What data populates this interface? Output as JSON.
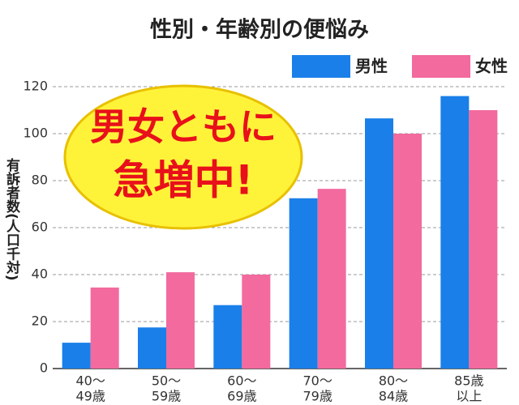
{
  "chart_data": {
    "type": "bar",
    "title": "性別・年齢別の便悩み",
    "y_label": "有訴者数(人口千対)",
    "annotation": [
      "男女ともに",
      "急増中!"
    ],
    "categories": [
      [
        "40～",
        "49歳"
      ],
      [
        "50～",
        "59歳"
      ],
      [
        "60～",
        "69歳"
      ],
      [
        "70～",
        "79歳"
      ],
      [
        "80～",
        "84歳"
      ],
      [
        "85歳",
        "以上"
      ]
    ],
    "series": [
      {
        "name": "男性",
        "color": "#1a7fe8",
        "values": [
          11,
          17.5,
          27,
          72.5,
          106.5,
          116
        ]
      },
      {
        "name": "女性",
        "color": "#f26a9e",
        "values": [
          34.5,
          41,
          40,
          76.5,
          100,
          110
        ]
      }
    ],
    "ylim": [
      0,
      120
    ],
    "yticks": [
      0,
      20,
      40,
      60,
      80,
      100,
      120
    ],
    "grid": true
  }
}
